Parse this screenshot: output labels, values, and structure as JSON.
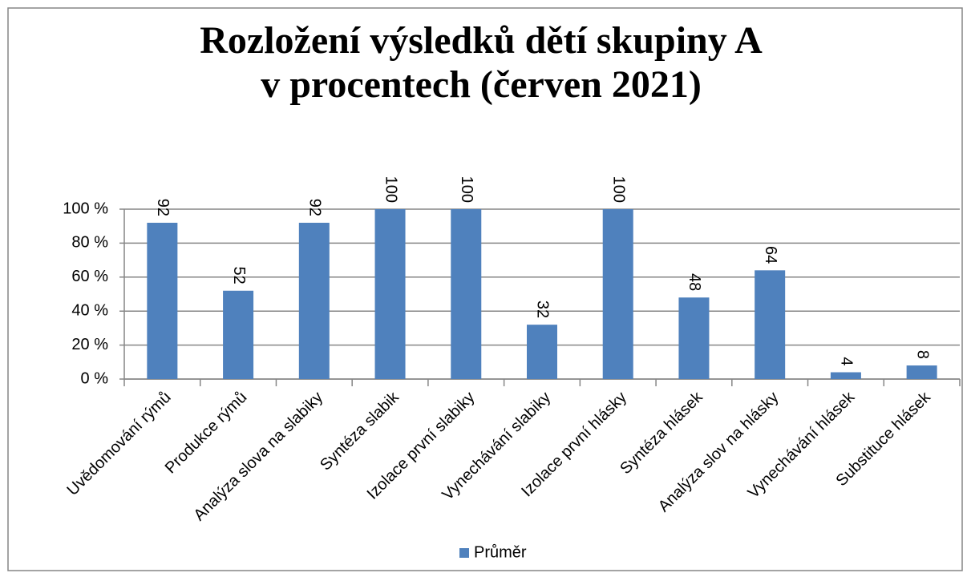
{
  "chart_data": {
    "type": "bar",
    "title": [
      "Rozložení výsledků dětí skupiny A",
      "v procentech (červen 2021)"
    ],
    "categories": [
      "Uvědomování rýmů",
      "Produkce rýmů",
      "Analýza slova na slabiky",
      "Syntéza slabik",
      "Izolace první slabiky",
      "Vynechávání slabiky",
      "Izolace první hlásky",
      "Syntéza hlásek",
      "Analýza slov na hlásky",
      "Vynechávání hlásek",
      "Substituce hlásek"
    ],
    "series": [
      {
        "name": "Průměr",
        "color": "#4f81bd",
        "values": [
          92,
          52,
          92,
          100,
          100,
          32,
          100,
          48,
          64,
          4,
          8
        ]
      }
    ],
    "ylim": [
      0,
      100
    ],
    "yticks": [
      {
        "value": 0,
        "label": "0 %"
      },
      {
        "value": 20,
        "label": "20 %"
      },
      {
        "value": 40,
        "label": "40 %"
      },
      {
        "value": 60,
        "label": "60 %"
      },
      {
        "value": 80,
        "label": "80 %"
      },
      {
        "value": 100,
        "label": "100 %"
      }
    ],
    "grid": true,
    "legend": "bottom"
  }
}
